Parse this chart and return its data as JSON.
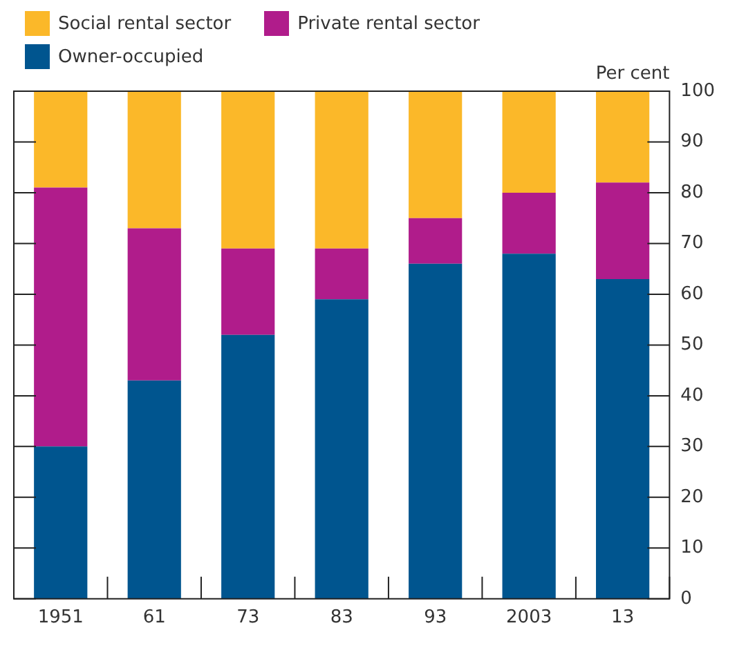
{
  "chart_data": {
    "type": "bar",
    "stacked": true,
    "ylabel": "Per cent",
    "categories": [
      "1951",
      "61",
      "73",
      "83",
      "93",
      "2003",
      "13"
    ],
    "series": [
      {
        "name": "Owner-occupied",
        "color": "#00558f",
        "values": [
          30,
          43,
          52,
          59,
          66,
          68,
          63
        ]
      },
      {
        "name": "Private rental sector",
        "color": "#b01c8b",
        "values": [
          51,
          30,
          17,
          10,
          9,
          12,
          19
        ]
      },
      {
        "name": "Social rental sector",
        "color": "#fbb829",
        "values": [
          19,
          27,
          31,
          31,
          25,
          20,
          18
        ]
      }
    ],
    "ylim": [
      0,
      100
    ],
    "yticks": [
      0,
      10,
      20,
      30,
      40,
      50,
      60,
      70,
      80,
      90,
      100
    ],
    "grid": false,
    "legend": "top left"
  }
}
